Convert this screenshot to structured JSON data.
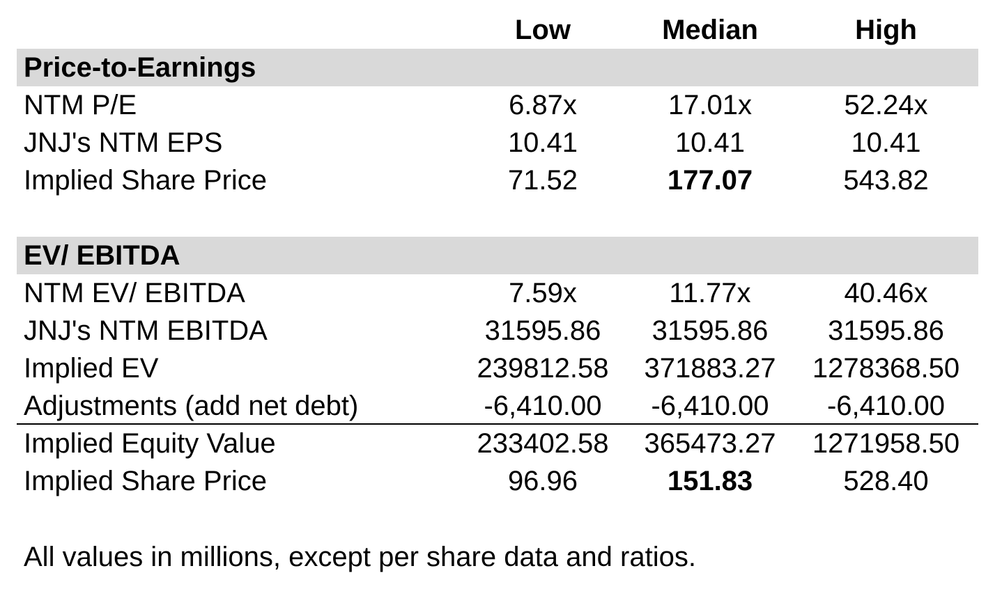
{
  "columns": [
    "Low",
    "Median",
    "High"
  ],
  "sections": [
    {
      "title": "Price-to-Earnings",
      "rows": [
        {
          "label": "NTM P/E",
          "values": [
            "6.87x",
            "17.01x",
            "52.24x"
          ]
        },
        {
          "label": "JNJ's NTM EPS",
          "values": [
            "10.41",
            "10.41",
            "10.41"
          ]
        },
        {
          "label": "Implied Share Price",
          "values": [
            "71.52",
            "177.07",
            "543.82"
          ]
        }
      ]
    },
    {
      "title": "EV/ EBITDA",
      "rows": [
        {
          "label": "NTM EV/ EBITDA",
          "values": [
            "7.59x",
            "11.77x",
            "40.46x"
          ]
        },
        {
          "label": "JNJ's NTM EBITDA",
          "values": [
            "31595.86",
            "31595.86",
            "31595.86"
          ]
        },
        {
          "label": "Implied EV",
          "values": [
            "239812.58",
            "371883.27",
            "1278368.50"
          ]
        },
        {
          "label": "Adjustments (add net debt)",
          "values": [
            "-6,410.00",
            "-6,410.00",
            "-6,410.00"
          ]
        },
        {
          "label": "Implied Equity Value",
          "values": [
            "233402.58",
            "365473.27",
            "1271958.50"
          ]
        },
        {
          "label": "Implied Share Price",
          "values": [
            "96.96",
            "151.83",
            "528.40"
          ]
        }
      ]
    }
  ],
  "footnote": "All values in millions, except per share data and ratios."
}
